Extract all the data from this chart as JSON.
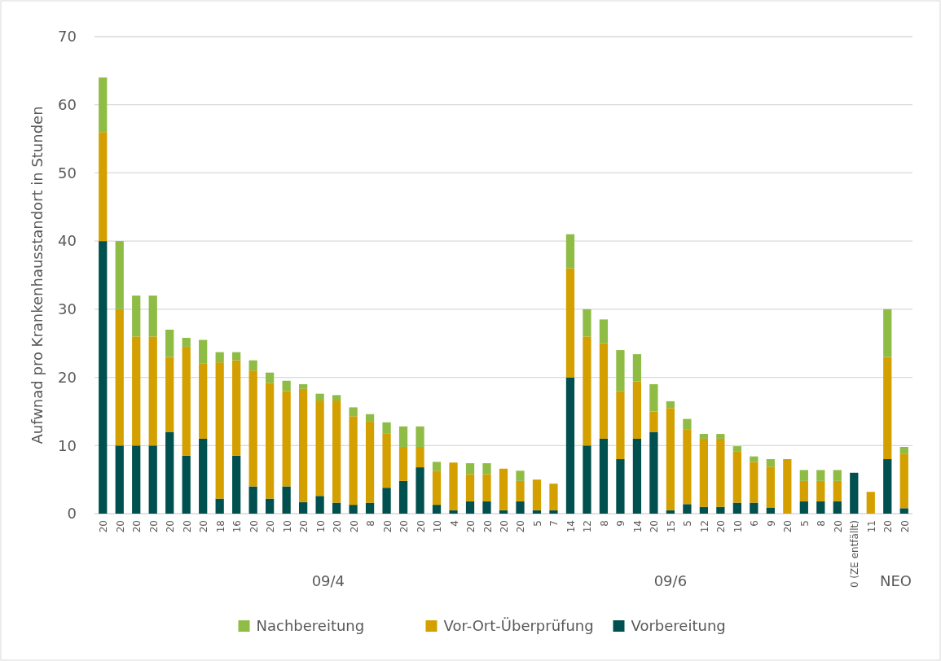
{
  "chart_data": {
    "type": "bar",
    "stacked": true,
    "ylabel": "Aufwnad pro Krankenhausstandort in Stunden",
    "categories": [
      "20",
      "20",
      "20",
      "20",
      "20",
      "20",
      "20",
      "18",
      "16",
      "20",
      "20",
      "10",
      "20",
      "10",
      "20",
      "20",
      "8",
      "20",
      "20",
      "20",
      "10",
      "4",
      "20",
      "20",
      "20",
      "20",
      "5",
      "7",
      "14",
      "12",
      "8",
      "9",
      "14",
      "20",
      "15",
      "5",
      "12",
      "20",
      "10",
      "6",
      "9",
      "20",
      "5",
      "8",
      "20",
      "0 (ZE entfällt)",
      "11",
      "20",
      "20"
    ],
    "series": [
      {
        "name": "Vorbereitung",
        "color": "#00504f",
        "values": [
          40,
          10,
          10,
          10,
          12,
          8.5,
          11,
          2.2,
          8.5,
          4,
          2.2,
          4,
          1.7,
          2.6,
          1.6,
          1.3,
          1.6,
          3.8,
          4.8,
          6.8,
          1.3,
          0.5,
          1.8,
          1.8,
          0.5,
          1.8,
          0.5,
          0.5,
          20,
          10,
          11,
          8,
          11,
          12,
          0.5,
          1.4,
          1,
          1,
          1.6,
          1.6,
          0.9,
          0,
          1.8,
          1.8,
          1.8,
          6,
          0,
          8,
          0.8
        ]
      },
      {
        "name": "Vor-Ort-Überprüfung",
        "color": "#d4a000",
        "values": [
          16,
          20,
          16,
          16,
          11,
          16,
          11,
          20,
          14,
          17,
          17,
          14,
          16.6,
          14,
          15,
          13,
          12,
          8,
          5,
          3,
          5,
          7,
          4,
          4,
          6.1,
          3,
          4.5,
          3.9,
          16,
          16,
          14,
          10,
          8.4,
          3,
          15,
          11,
          10,
          10,
          7.5,
          6,
          6,
          8,
          3,
          3,
          3,
          0,
          3.2,
          15,
          8
        ]
      },
      {
        "name": "Nachbereitung",
        "color": "#8fbc45",
        "values": [
          8,
          10,
          6,
          6,
          4,
          1.3,
          3.5,
          1.5,
          1.2,
          1.5,
          1.5,
          1.5,
          0.7,
          1,
          0.8,
          1.3,
          1,
          1.6,
          3,
          3,
          1.3,
          0,
          1.6,
          1.6,
          0,
          1.5,
          0,
          0,
          5,
          4,
          3.5,
          6,
          4,
          4,
          1,
          1.5,
          0.7,
          0.7,
          0.8,
          0.8,
          1.1,
          0,
          1.6,
          1.6,
          1.6,
          0,
          0,
          7,
          1
        ]
      }
    ],
    "ylim": [
      0,
      70
    ],
    "yticks": [
      0,
      10,
      20,
      30,
      40,
      50,
      60,
      70
    ],
    "grid": "y",
    "legend": "bottom",
    "annotations": [
      "09/4",
      "09/6",
      "NEO"
    ]
  }
}
